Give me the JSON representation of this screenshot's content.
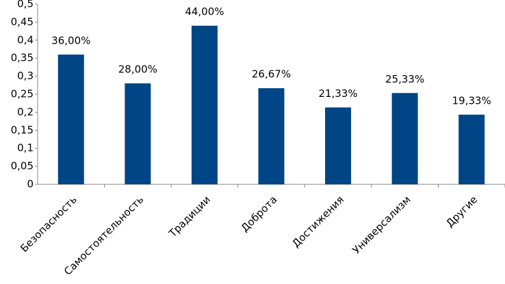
{
  "chart_data": {
    "type": "bar",
    "categories": [
      "Безопасность",
      "Самостоятельность",
      "Традиции",
      "Доброта",
      "Достижения",
      "Универсализм",
      "Другие"
    ],
    "values": [
      0.36,
      0.28,
      0.44,
      0.2667,
      0.2133,
      0.2533,
      0.1933
    ],
    "value_labels": [
      "36,00%",
      "28,00%",
      "44,00%",
      "26,67%",
      "21,33%",
      "25,33%",
      "19,33%"
    ],
    "color": "#004586",
    "ylim": [
      0,
      0.5
    ],
    "yticks": [
      0,
      {
        "value": 0.05,
        "label": "0,05"
      },
      {
        "value": 0.1,
        "label": "0,1"
      },
      {
        "value": 0.15,
        "label": "0,15"
      },
      {
        "value": 0.2,
        "label": "0,2"
      },
      {
        "value": 0.25,
        "label": "0,25"
      },
      {
        "value": 0.3,
        "label": "0,3"
      },
      {
        "value": 0.35,
        "label": "0,35"
      },
      {
        "value": 0.4,
        "label": "0,4"
      },
      {
        "value": 0.45,
        "label": "0,45"
      },
      {
        "value": 0.5,
        "label": "0,5"
      }
    ],
    "grid": false
  }
}
